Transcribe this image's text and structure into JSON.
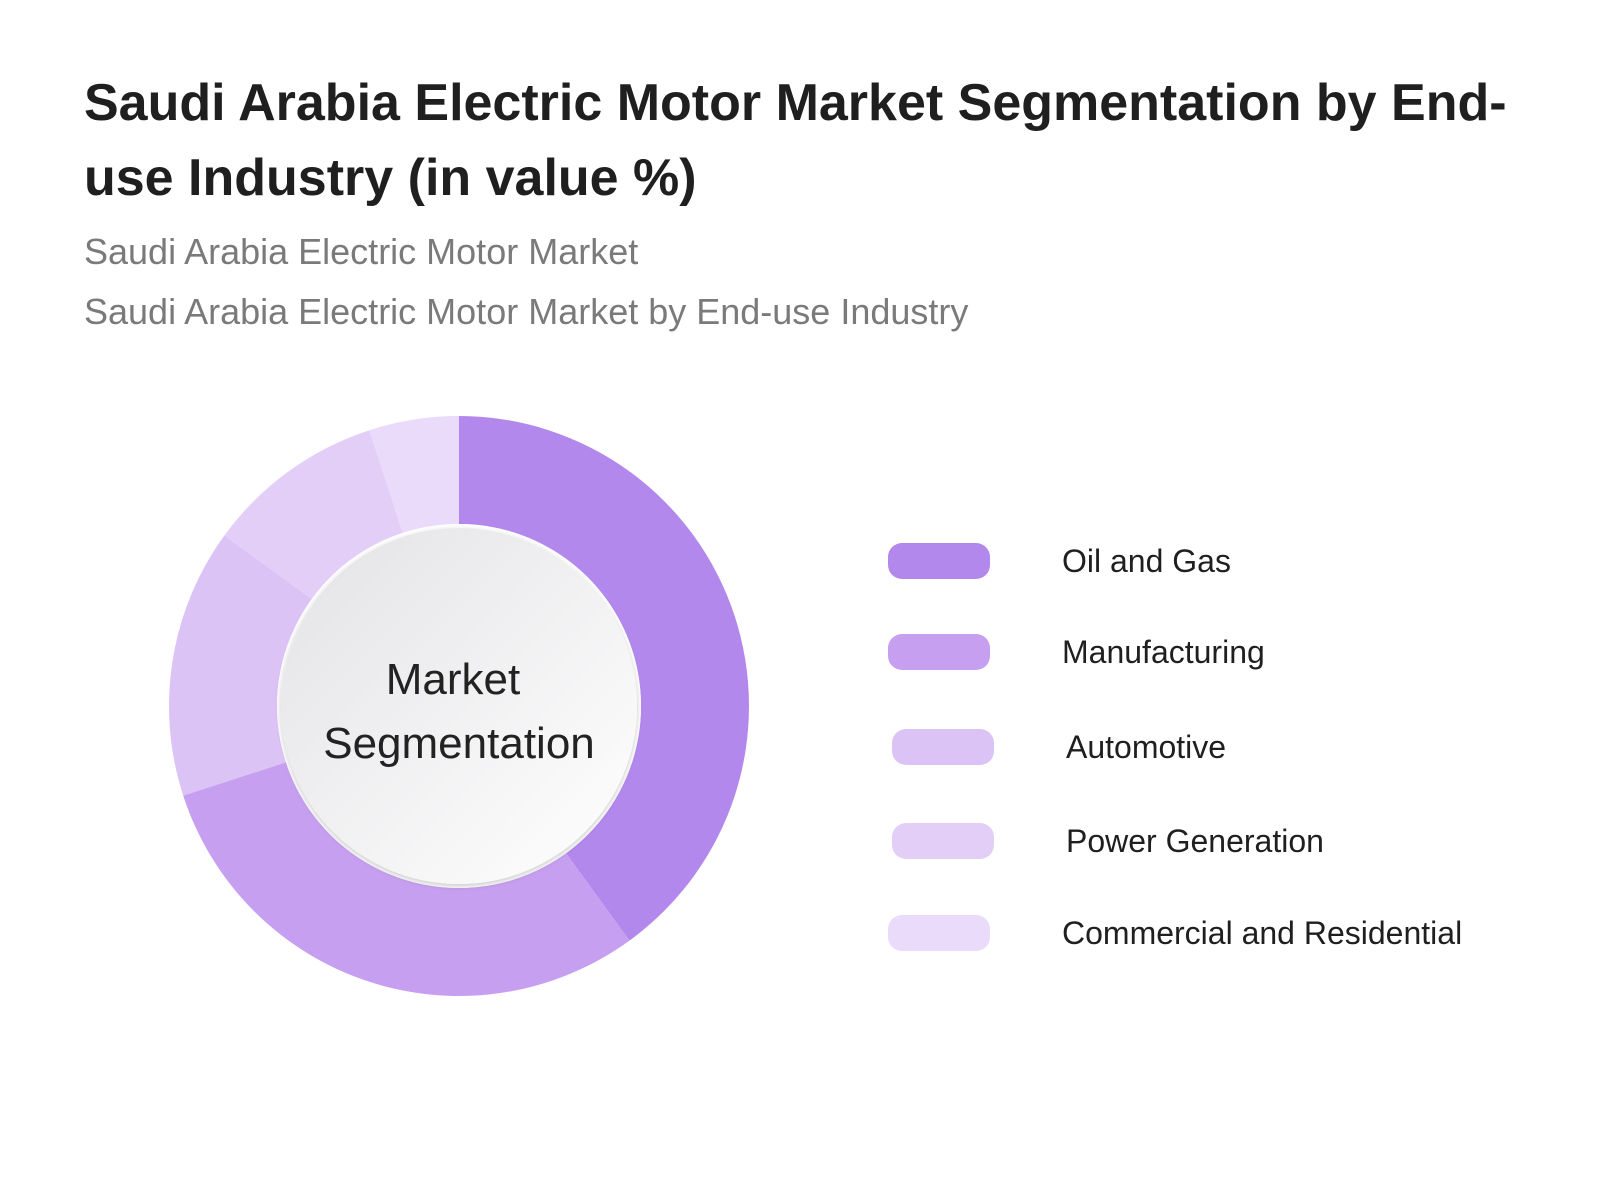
{
  "chart_data": {
    "type": "pie",
    "title": "Saudi Arabia Electric Motor Market Segmentation by End-use Industry (in value %)",
    "subtitles": [
      "Saudi Arabia Electric Motor Market",
      "Saudi Arabia Electric Motor Market by End-use Industry"
    ],
    "center_label": [
      "Market",
      "Segmentation"
    ],
    "categories": [
      "Oil and Gas",
      "Manufacturing",
      "Automotive",
      "Power Generation",
      "Commercial and Residential"
    ],
    "values": [
      40,
      30,
      15,
      10,
      5
    ],
    "colors": [
      "#b388ec",
      "#c79ff0",
      "#dcc3f6",
      "#e2cef7",
      "#eadbfa"
    ],
    "legend_position": "right"
  }
}
